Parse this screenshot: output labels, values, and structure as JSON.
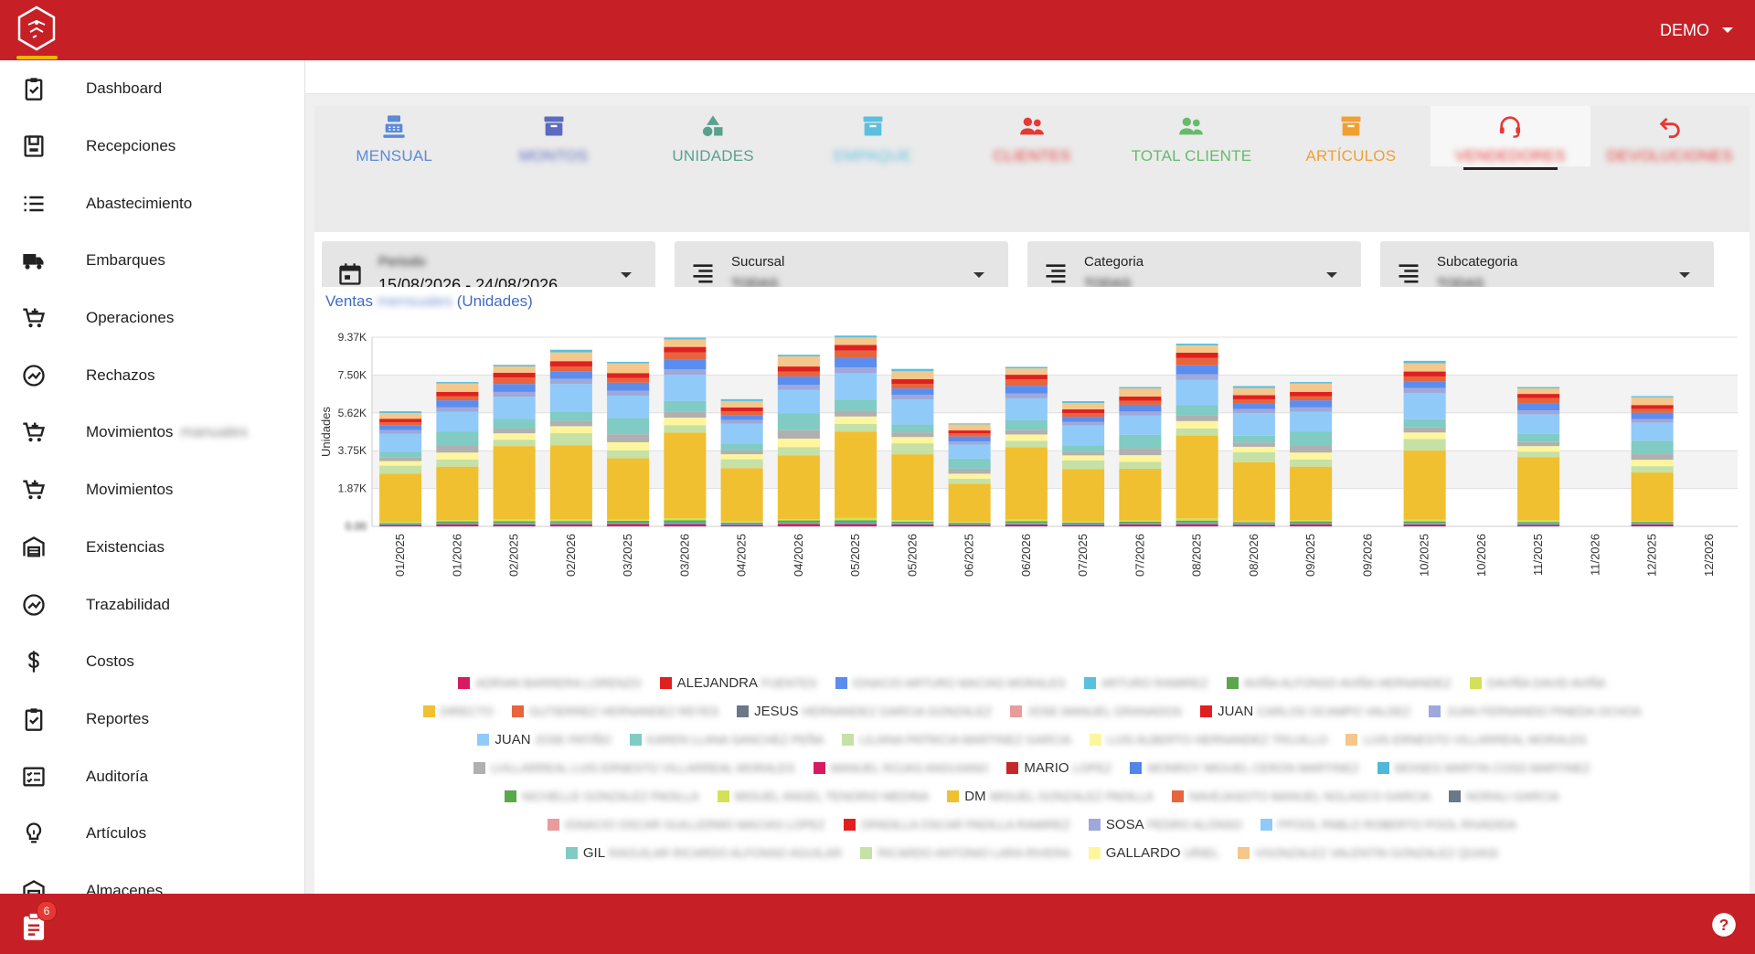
{
  "header": {
    "user_label": "DEMO",
    "accent": "#c62026"
  },
  "sidebar": {
    "items": [
      {
        "label": "Dashboard",
        "icon": "clipboard-check-icon"
      },
      {
        "label": "Recepciones",
        "icon": "save-box-icon"
      },
      {
        "label": "Abastecimiento",
        "icon": "list-icon"
      },
      {
        "label": "Embarques",
        "icon": "truck-icon"
      },
      {
        "label": "Operaciones",
        "icon": "cart-plus-icon"
      },
      {
        "label": "Rechazos",
        "icon": "trend-circle-icon"
      },
      {
        "label": "Movimientos",
        "icon": "cart-plus-icon",
        "suffix": "manuales"
      },
      {
        "label": "Movimientos",
        "icon": "cart-plus-icon"
      },
      {
        "label": "Existencias",
        "icon": "warehouse-icon"
      },
      {
        "label": "Trazabilidad",
        "icon": "trend-circle-icon"
      },
      {
        "label": "Costos",
        "icon": "dollar-icon"
      },
      {
        "label": "Reportes",
        "icon": "clipboard-check-icon"
      },
      {
        "label": "Auditoría",
        "icon": "checklist-icon"
      },
      {
        "label": "Artículos",
        "icon": "lightbulb-icon"
      },
      {
        "label": "Almacenes",
        "icon": "warehouse-icon"
      }
    ]
  },
  "tabs": [
    {
      "label": "MENSUAL",
      "color": "#5b8ad6",
      "icon": "cash-register-icon",
      "blurred": false
    },
    {
      "label": "MONTOS",
      "color": "#5c6bc0",
      "icon": "archive-icon",
      "blurred": true
    },
    {
      "label": "UNIDADES",
      "color": "#5aa08e",
      "icon": "shapes-icon",
      "blurred": false
    },
    {
      "label": "EMPAQUE",
      "color": "#5bc0de",
      "icon": "box-icon",
      "blurred": true
    },
    {
      "label": "CLIENTES",
      "color": "#e53935",
      "icon": "users-icon",
      "blurred": true
    },
    {
      "label": "TOTAL CLIENTE",
      "color": "#66bb6a",
      "icon": "users-icon",
      "blurred": false
    },
    {
      "label": "ARTÍCULOS",
      "color": "#f0a030",
      "icon": "box-icon",
      "blurred": false
    },
    {
      "label": "VENDEDORES",
      "color": "#e53935",
      "icon": "headset-icon",
      "blurred": true
    },
    {
      "label": "DEVOLUCIONES",
      "color": "#e53935",
      "icon": "undo-icon",
      "blurred": true
    }
  ],
  "filters": {
    "period": {
      "label": "Periodo",
      "value": "15/08/2026 - 24/08/2026"
    },
    "sucursal": {
      "label": "Sucursal",
      "value": "TODAS"
    },
    "categoria": {
      "label": "Categoria",
      "value": "TODAS"
    },
    "subcategoria": {
      "label": "Subcategoria",
      "value": "TODAS"
    }
  },
  "chart_card": {
    "title_start": "Ventas",
    "title_hidden": "mensuales",
    "title_end": "(Unidades)"
  },
  "chart_data": {
    "type": "bar",
    "stacked": true,
    "ylabel": "Unidades",
    "ytick_labels": [
      "0.00",
      "1.87K",
      "3.75K",
      "5.62K",
      "7.50K",
      "9.37K"
    ],
    "ylim": [
      0,
      9370
    ],
    "categories": [
      "01/2025",
      "01/2026",
      "02/2025",
      "02/2026",
      "03/2025",
      "03/2026",
      "04/2025",
      "04/2026",
      "05/2025",
      "05/2026",
      "06/2025",
      "06/2026",
      "07/2025",
      "07/2026",
      "08/2025",
      "08/2026",
      "09/2025",
      "09/2026",
      "10/2025",
      "10/2026",
      "11/2025",
      "11/2026",
      "12/2025",
      "12/2026"
    ],
    "totals": [
      5700,
      7150,
      8000,
      8750,
      8150,
      9350,
      6300,
      8500,
      9450,
      7800,
      5100,
      7900,
      6200,
      6900,
      9050,
      6950,
      7150,
      0,
      8200,
      0,
      6900,
      0,
      6450,
      0
    ],
    "series": [
      {
        "name": "ALEJANDRA",
        "color": "#e02020"
      },
      {
        "name": "JESUS",
        "color": "#6a7888"
      },
      {
        "name": "JUAN",
        "color": "#e02020"
      },
      {
        "name": "JUAN",
        "color": "#90caf9"
      },
      {
        "name": "MARIO",
        "color": "#d32f2f"
      },
      {
        "name": "DM",
        "color": "#f0c030"
      },
      {
        "name": "SOSA",
        "color": "#9fa8da"
      },
      {
        "name": "GIL",
        "color": "#80cbc4"
      },
      {
        "name": "GALLARDO",
        "color": "#fff59d"
      }
    ],
    "grid": true,
    "legend_position": "bottom"
  },
  "legend": [
    [
      {
        "c": "#d81b60",
        "n": "",
        "b": "ADRIAN BARRERA LORENZO"
      },
      {
        "c": "#e02020",
        "n": "ALEJANDRA",
        "b": "FUENTES"
      },
      {
        "c": "#5b8def",
        "n": "",
        "b": "IGNACIO ARTURO MACIAS MORALES"
      },
      {
        "c": "#5bc0de",
        "n": "",
        "b": "ARTURO RAMIREZ"
      },
      {
        "c": "#5aa84a",
        "n": "",
        "b": "AVIÑA ALFONSO AVIÑA HERNANDEZ"
      },
      {
        "c": "#d4e157",
        "n": "",
        "b": "DAVIÑA DAVID AVIÑA"
      }
    ],
    [
      {
        "c": "#f0c030",
        "n": "",
        "b": "DIRECTO"
      },
      {
        "c": "#e8643c",
        "n": "",
        "b": "GUTIERREZ HERNANDEZ REYES"
      },
      {
        "c": "#6a7888",
        "n": "JESUS",
        "b": "HERNANDEZ GARCIA GONZALEZ"
      },
      {
        "c": "#e89c9c",
        "n": "",
        "b": "JOSE MANUEL GRANADOS"
      },
      {
        "c": "#e02020",
        "n": "JUAN",
        "b": "CARLOS OCAMPO VALDEZ"
      },
      {
        "c": "#9fa8da",
        "n": "",
        "b": "JUAN FERNANDO PINEDA OCHOA"
      }
    ],
    [
      {
        "c": "#90caf9",
        "n": "JUAN",
        "b": "JOSE PATIÑO"
      },
      {
        "c": "#80cbc4",
        "n": "",
        "b": "KAREN LLANA SANCHEZ PEÑA"
      },
      {
        "c": "#c5e1a5",
        "n": "",
        "b": "LILIANA PATRICIA MARTINEZ GARCIA"
      },
      {
        "c": "#fff59d",
        "n": "",
        "b": "LUIS ALBERTO HERNANDEZ TRUJILLO"
      },
      {
        "c": "#f5c78a",
        "n": "",
        "b": "LUIS ERNESTO VILLARREAL MORALES"
      }
    ],
    [
      {
        "c": "#b0b0b0",
        "n": "",
        "b": "LVILLARREAL LUIS ERNESTO VILLARREAL MORALES"
      },
      {
        "c": "#d81b60",
        "n": "",
        "b": "MANUEL ROJAS ANGUIANO"
      },
      {
        "c": "#c62828",
        "n": "MARIO",
        "b": "LOPEZ"
      },
      {
        "c": "#4f86e8",
        "n": "",
        "b": "MONROY MIGUEL CERON MARTINEZ"
      },
      {
        "c": "#4fb8d8",
        "n": "",
        "b": "MOISES MARTIN COSS MARTINEZ"
      }
    ],
    [
      {
        "c": "#5aa84a",
        "n": "",
        "b": "NICHELLE GONZALEZ PADILLA"
      },
      {
        "c": "#d4e157",
        "n": "",
        "b": "MIGUEL ANGEL TENORIO MEDINA"
      },
      {
        "c": "#f0c030",
        "n": "DM",
        "b": "MIGUEL GONZALEZ PADILLA"
      },
      {
        "c": "#e8643c",
        "n": "",
        "b": "NAVEJASOTO MANUEL NOLASCO GARCIA"
      },
      {
        "c": "#6a7888",
        "n": "",
        "b": "NORALI GARCIA"
      }
    ],
    [
      {
        "c": "#e89c9c",
        "n": "",
        "b": "IGNACIO OSCAR GUILLERMO MACIAS LOPEZ"
      },
      {
        "c": "#e02020",
        "n": "",
        "b": "OPADILLA OSCAR PADILLA RAMIREZ"
      },
      {
        "c": "#9fa8da",
        "n": "SOSA",
        "b": "PEDRO ALONSO"
      },
      {
        "c": "#90caf9",
        "n": "",
        "b": "PPOOL PABLO ROBERTO POOL RIVADIDA"
      }
    ],
    [
      {
        "c": "#80cbc4",
        "n": "GIL",
        "b": "RAGUILAR RICARDO ALFONSO AGUILAR"
      },
      {
        "c": "#c5e1a5",
        "n": "",
        "b": "RICARDO ANTONIO LARA RIVERA"
      },
      {
        "c": "#fff59d",
        "n": "GALLARDO",
        "b": "URIEL"
      },
      {
        "c": "#f5c78a",
        "n": "",
        "b": "VGONZALEZ VALENTIN GONZALEZ QUIASI"
      }
    ]
  ],
  "footer": {
    "badge_count": "6"
  }
}
